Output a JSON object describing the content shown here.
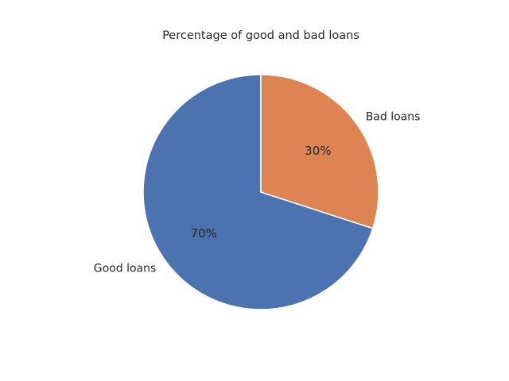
{
  "chart_data": {
    "type": "pie",
    "title": "Percentage of good and bad loans",
    "categories": [
      "Good loans",
      "Bad loans"
    ],
    "values": [
      70,
      30
    ],
    "value_labels": [
      "70%",
      "30%"
    ],
    "colors": [
      "#4c72b0",
      "#dd8452"
    ],
    "start_angle_deg": 90,
    "direction": "counterclockwise",
    "edge_color": "#ffffff",
    "legend": "none"
  }
}
